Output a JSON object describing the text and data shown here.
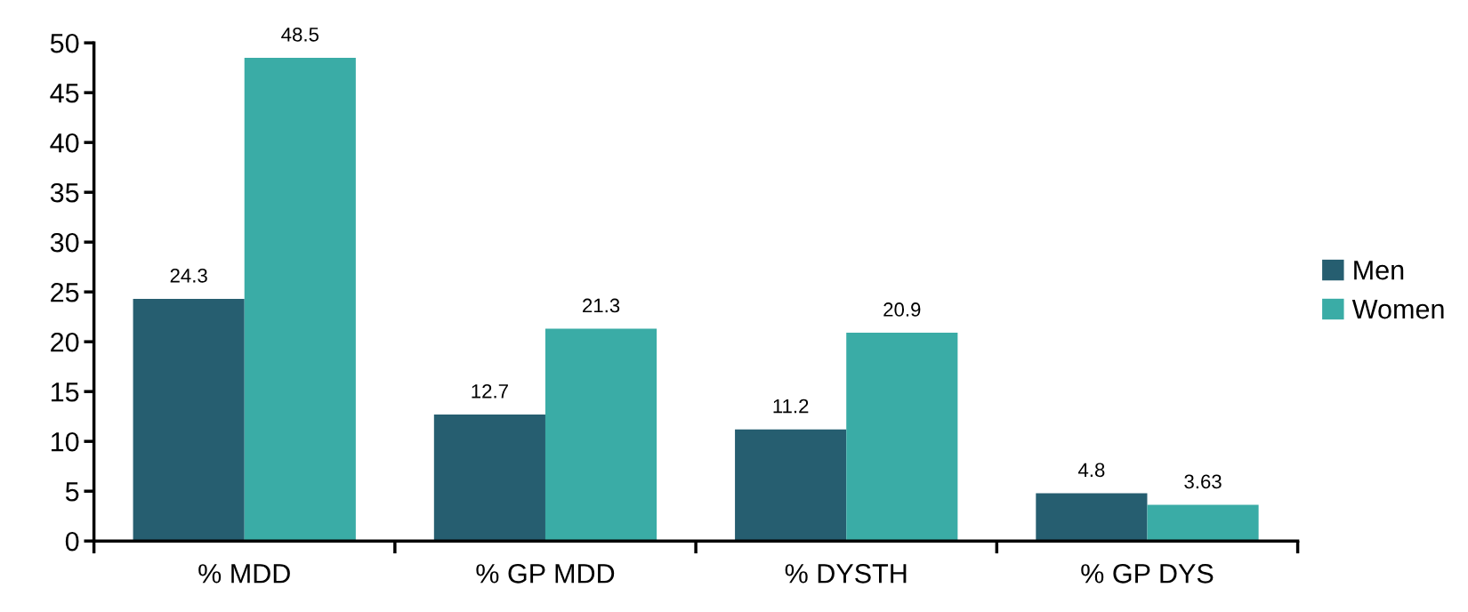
{
  "chart_data": {
    "type": "bar",
    "categories": [
      "% MDD",
      "% GP MDD",
      "% DYSTH",
      "% GP DYS"
    ],
    "series": [
      {
        "name": "Men",
        "color": "#265e70",
        "values": [
          24.3,
          12.7,
          11.2,
          4.8
        ]
      },
      {
        "name": "Women",
        "color": "#3aaca6",
        "values": [
          48.5,
          21.3,
          20.9,
          3.63
        ]
      }
    ],
    "ylim": [
      0,
      50
    ],
    "yticks": [
      0,
      5,
      10,
      15,
      20,
      25,
      30,
      35,
      40,
      45,
      50
    ],
    "data_labels": true,
    "grid": false,
    "legend": "right"
  }
}
